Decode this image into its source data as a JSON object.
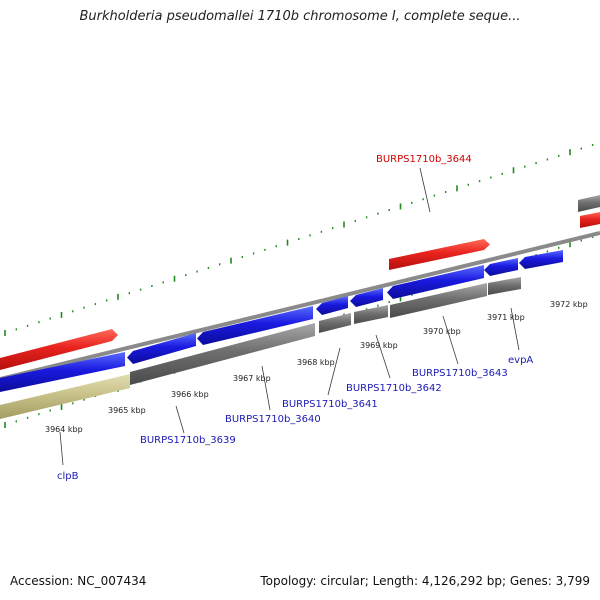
{
  "title": "Burkholderia pseudomallei 1710b chromosome I, complete seque...",
  "footer": {
    "accession": "Accession: NC_007434",
    "stats": "Topology: circular; Length: 4,126,292 bp; Genes: 3,799"
  },
  "colors": {
    "forward_cds": "#e8231e",
    "reverse_cds": "#1a1ae0",
    "forward_gene": "#6f6f6f",
    "reverse_gene": "#6f6f6f",
    "other_feature": "#c8c28a",
    "backbone": "#8a8a8a",
    "tick": "#1f8a1f",
    "label_red": "#d40000",
    "label_blue": "#1a1ab4"
  },
  "tick_labels": [
    "3964 kbp",
    "3965 kbp",
    "3966 kbp",
    "3967 kbp",
    "3968 kbp",
    "3969 kbp",
    "3970 kbp",
    "3971 kbp",
    "3972 kbp"
  ],
  "gene_labels": [
    {
      "text": "BURPS1710b_3644",
      "color": "red"
    },
    {
      "text": "clpB",
      "color": "blue"
    },
    {
      "text": "BURPS1710b_3639",
      "color": "blue"
    },
    {
      "text": "BURPS1710b_3640",
      "color": "blue"
    },
    {
      "text": "BURPS1710b_3641",
      "color": "blue"
    },
    {
      "text": "BURPS1710b_3642",
      "color": "blue"
    },
    {
      "text": "BURPS1710b_3643",
      "color": "blue"
    },
    {
      "text": "evpA",
      "color": "blue"
    }
  ]
}
